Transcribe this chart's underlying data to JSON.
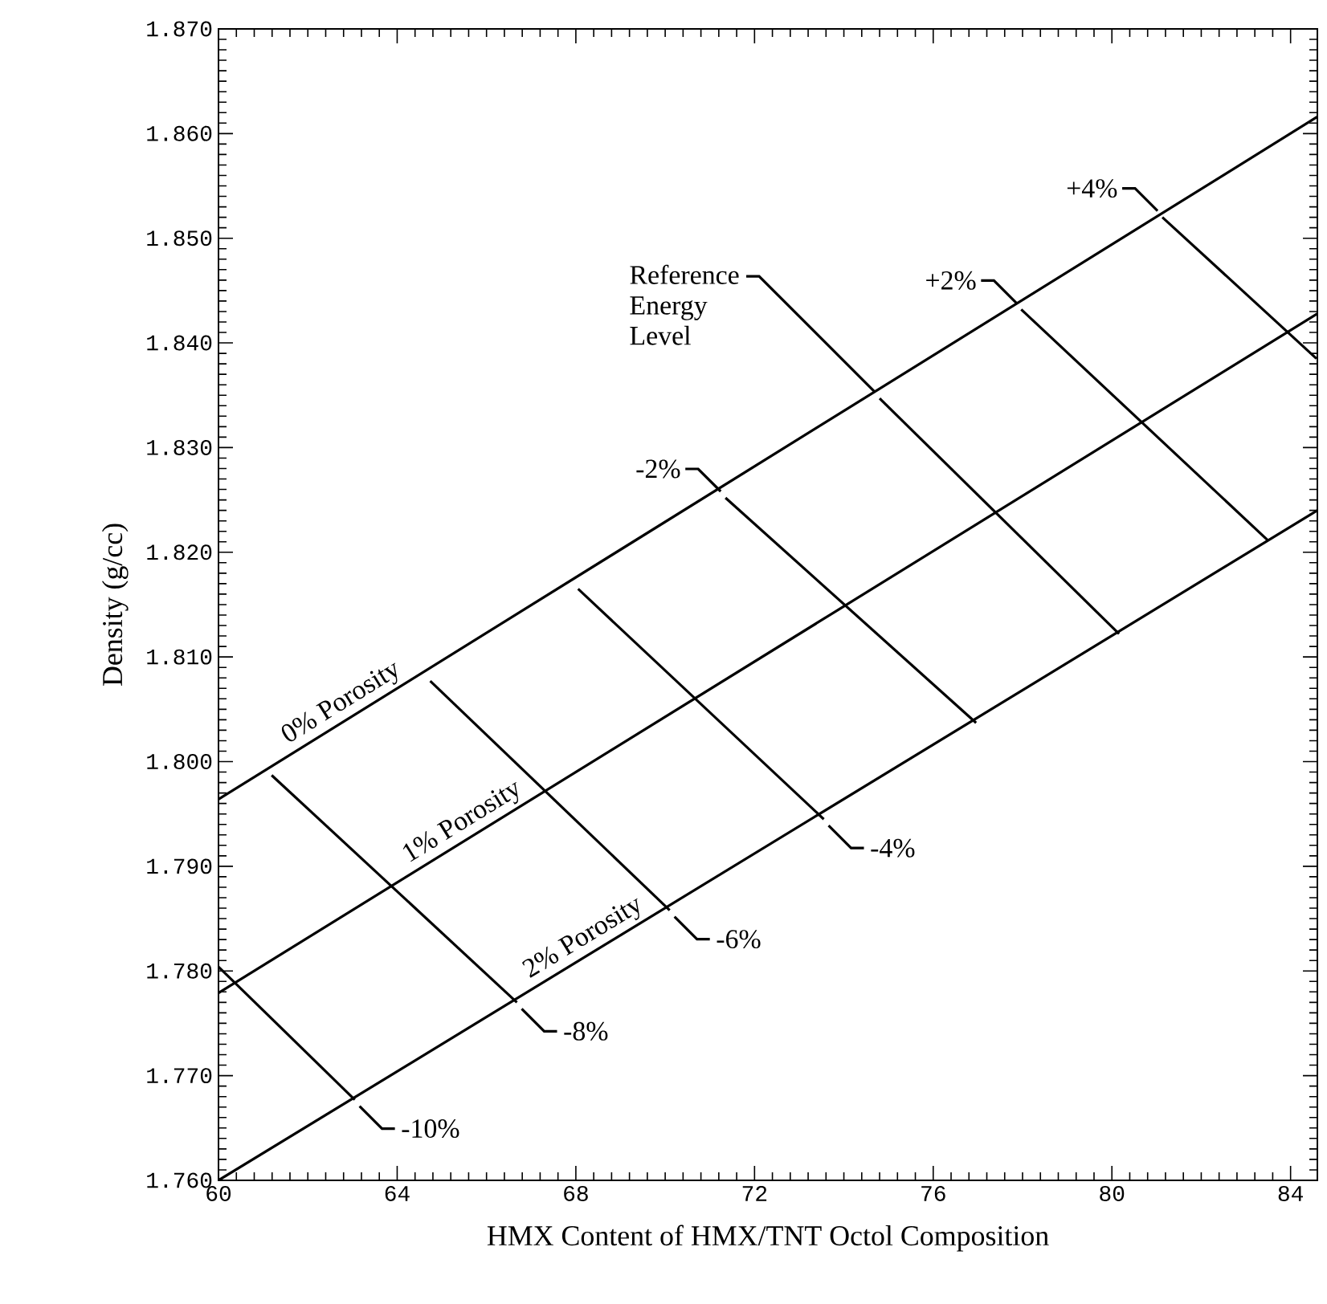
{
  "chart_data": {
    "type": "line",
    "xlabel": "HMX Content of HMX/TNT Octol Composition",
    "ylabel": "Density (g/cc)",
    "xlim": [
      60,
      84.6
    ],
    "ylim": [
      1.76,
      1.87
    ],
    "xticks": [
      60,
      64,
      68,
      72,
      76,
      80,
      84
    ],
    "yticks": [
      {
        "value": 1.76,
        "label": "1.760"
      },
      {
        "value": 1.77,
        "label": "1.770"
      },
      {
        "value": 1.78,
        "label": "1.780"
      },
      {
        "value": 1.79,
        "label": "1.790"
      },
      {
        "value": 1.8,
        "label": "1.800"
      },
      {
        "value": 1.81,
        "label": "1.810"
      },
      {
        "value": 1.82,
        "label": "1.820"
      },
      {
        "value": 1.83,
        "label": "1.830"
      },
      {
        "value": 1.84,
        "label": "1.840"
      },
      {
        "value": 1.85,
        "label": "1.850"
      },
      {
        "value": 1.86,
        "label": "1.860"
      },
      {
        "value": 1.87,
        "label": "1.870"
      }
    ],
    "series": [
      {
        "name": "0% Porosity",
        "color": "#000000",
        "x": [
          60,
          84.6
        ],
        "values": [
          1.7964,
          1.8616
        ]
      },
      {
        "name": "1% Porosity",
        "color": "#000000",
        "x": [
          60,
          84.6
        ],
        "values": [
          1.7779,
          1.8428
        ]
      },
      {
        "name": "2% Porosity",
        "color": "#000000",
        "x": [
          60,
          84.6
        ],
        "values": [
          1.76,
          1.824
        ]
      },
      {
        "color": "#000000",
        "x": [
          60,
          63.05
        ],
        "values": [
          1.7804,
          1.7677
        ]
      },
      {
        "color": "#000000",
        "x": [
          61.19,
          66.68
        ],
        "values": [
          1.7987,
          1.777
        ]
      },
      {
        "color": "#000000",
        "x": [
          64.74,
          70.1
        ],
        "values": [
          1.8077,
          1.7858
        ]
      },
      {
        "color": "#000000",
        "x": [
          68.05,
          73.55
        ],
        "values": [
          1.8165,
          1.7945
        ]
      },
      {
        "color": "#000000",
        "x": [
          71.35,
          76.96
        ],
        "values": [
          1.8252,
          1.8037
        ]
      },
      {
        "color": "#000000",
        "x": [
          74.8,
          80.16
        ],
        "values": [
          1.8347,
          1.8122
        ]
      },
      {
        "color": "#000000",
        "x": [
          77.97,
          83.5
        ],
        "values": [
          1.8432,
          1.8211
        ]
      },
      {
        "color": "#000000",
        "x": [
          81.13,
          84.58
        ],
        "values": [
          1.852,
          1.8385
        ]
      }
    ],
    "annotations": [
      {
        "text": "-10%",
        "x": 63.05,
        "y": 1.7677
      },
      {
        "text": "-8%",
        "x": 66.68,
        "y": 1.777
      },
      {
        "text": "-6%",
        "x": 70.1,
        "y": 1.7858
      },
      {
        "text": "-4%",
        "x": 73.55,
        "y": 1.7945
      },
      {
        "text": "-2%",
        "x": 71.35,
        "y": 1.8252
      },
      {
        "text": "Reference Energy Level",
        "x": 74.8,
        "y": 1.8347
      },
      {
        "text": "+2%",
        "x": 77.97,
        "y": 1.8432
      },
      {
        "text": "+4%",
        "x": 81.13,
        "y": 1.852
      }
    ]
  }
}
